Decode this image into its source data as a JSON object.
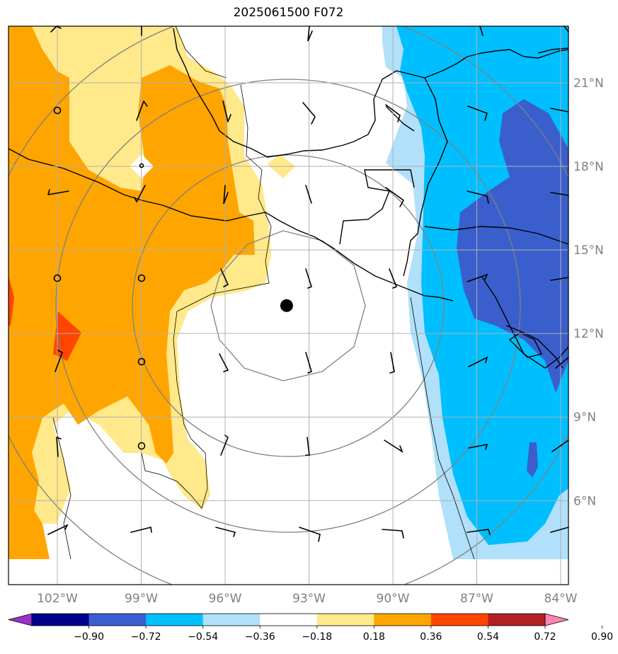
{
  "title": "2025061500 F072",
  "lon_labels": [
    "102°W",
    "99°W",
    "96°W",
    "93°W",
    "90°W",
    "87°W",
    "84°W"
  ],
  "lat_labels": [
    "21°N",
    "18°N",
    "15°N",
    "12°N",
    "9°N",
    "6°N"
  ],
  "colorbar": {
    "colors": [
      "#9932cc",
      "#00008b",
      "#3a5fcd",
      "#00bfff",
      "#b0e0fa",
      "#ffffff",
      "#ffe98a",
      "#ffa500",
      "#ff4500",
      "#b22222",
      "#ff85b4"
    ],
    "tick_labels": [
      "−0.90",
      "−0.72",
      "−0.54",
      "−0.36",
      "−0.18",
      "0.18",
      "0.36",
      "0.54",
      "0.72",
      "0.90"
    ]
  },
  "storm_center": {
    "lon": -93.8,
    "lat": 13.0
  },
  "colors": {
    "orange": "#ffa500",
    "light_yellow": "#ffe98a",
    "sky_blue": "#00bfff",
    "light_blue": "#b0e0fa",
    "royal_blue": "#3a5fcd",
    "red_orange": "#ff4500"
  }
}
